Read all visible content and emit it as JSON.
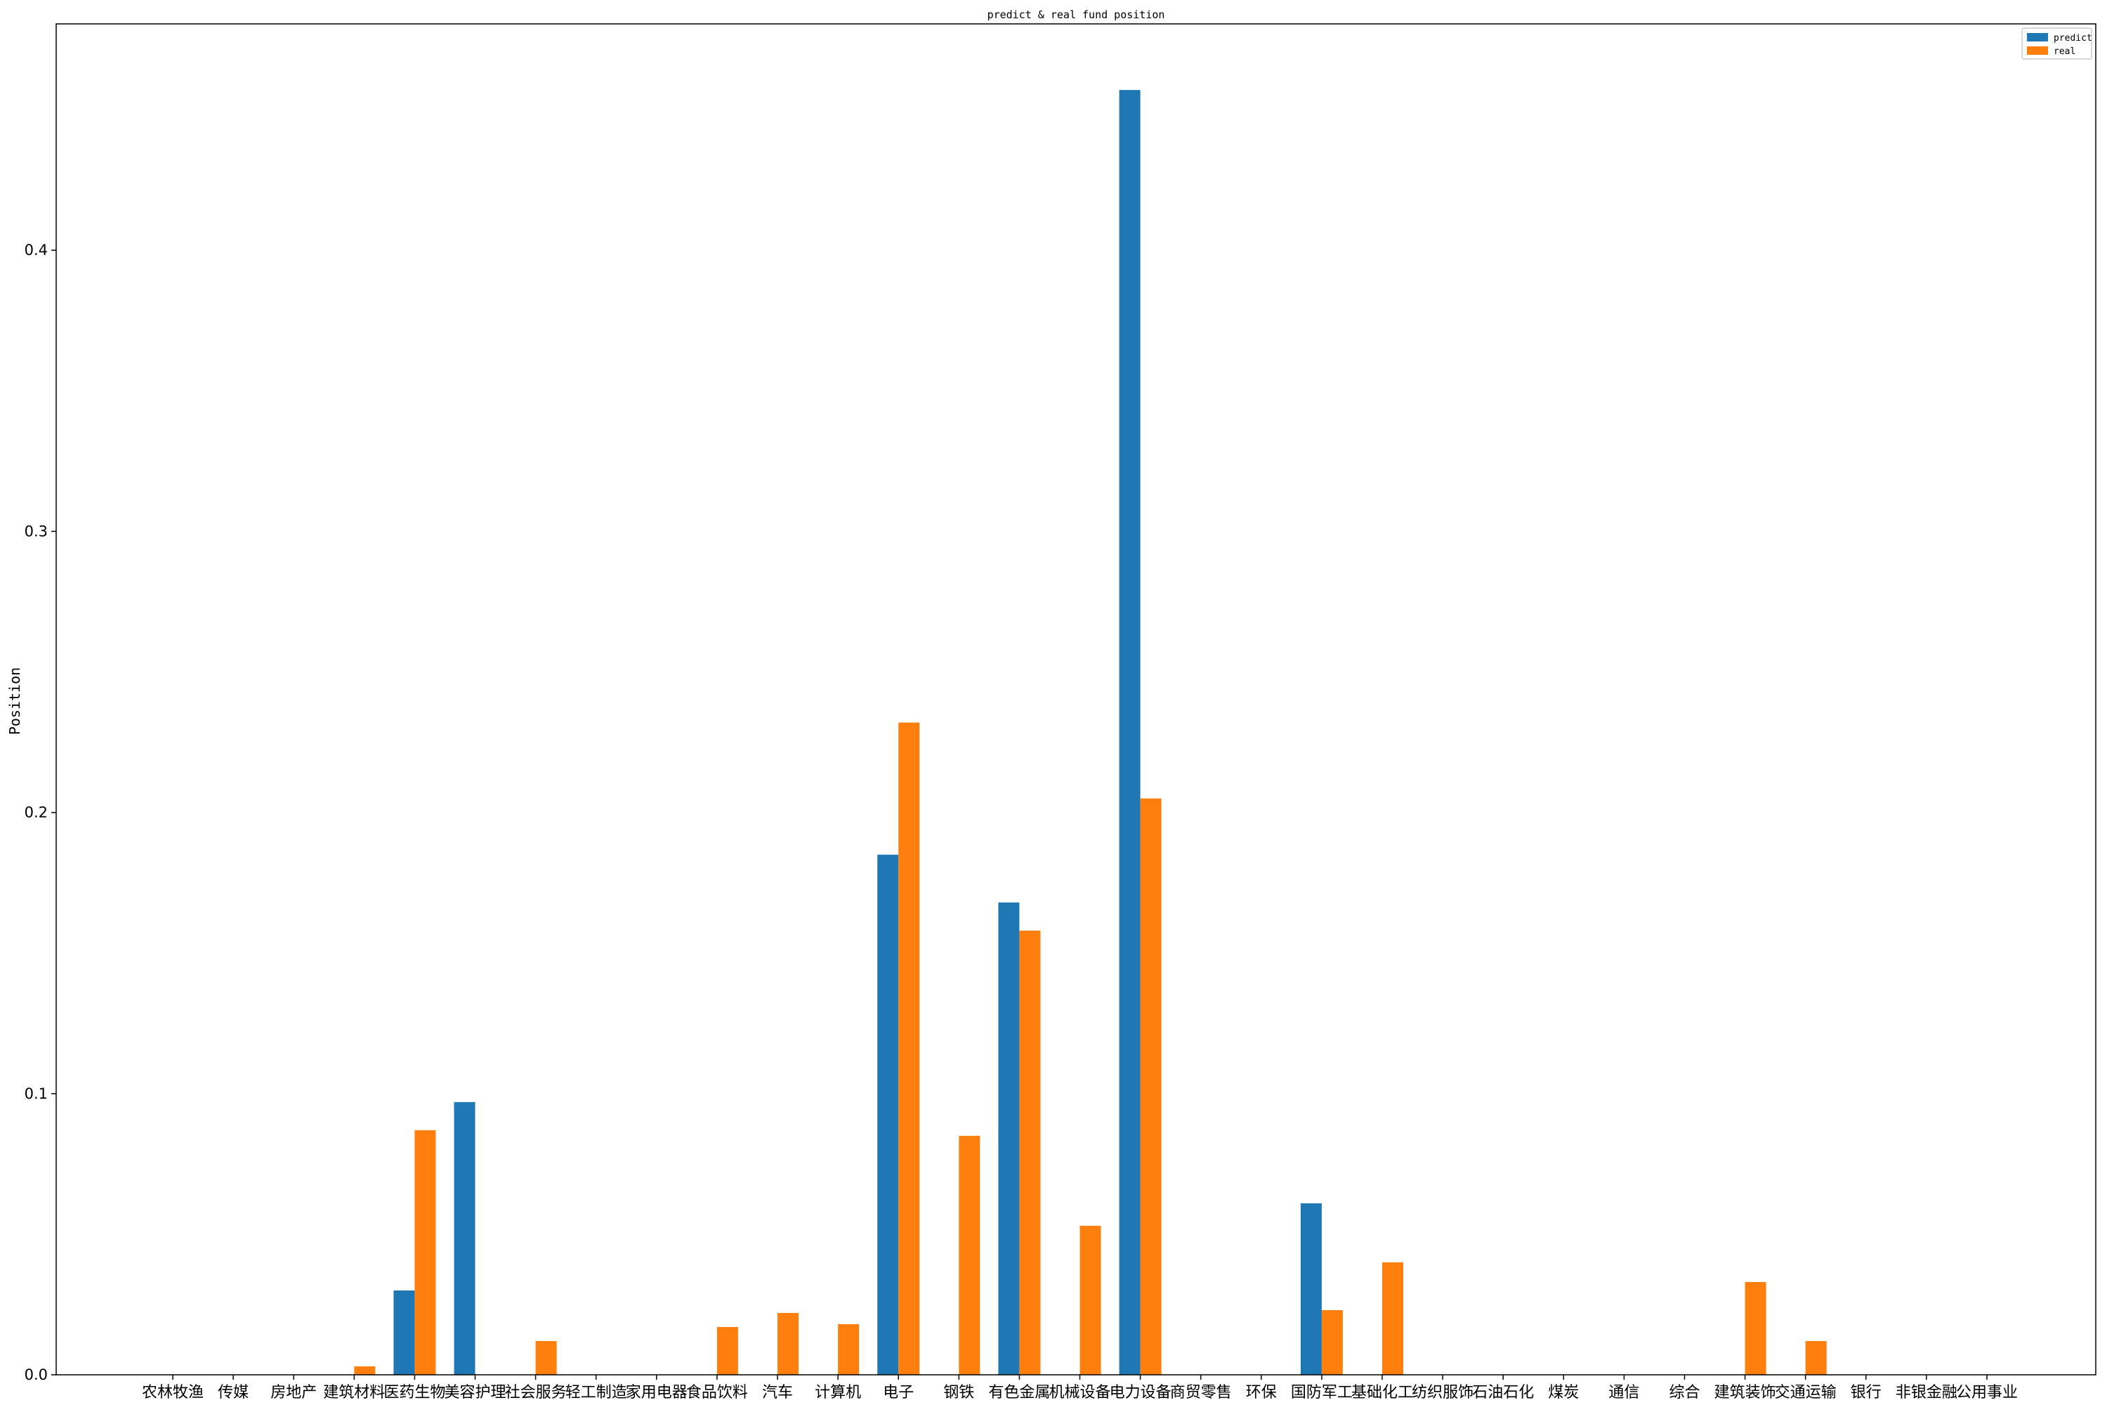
{
  "chart_data": {
    "type": "bar",
    "title": "predict & real fund position",
    "xlabel": "",
    "ylabel": "Position",
    "ylim": [
      0,
      0.48
    ],
    "yticks": [
      "0.0",
      "0.1",
      "0.2",
      "0.3",
      "0.4"
    ],
    "legend_position": "top-right",
    "grid": false,
    "categories": [
      "农林牧渔",
      "传媒",
      "房地产",
      "建筑材料",
      "医药生物",
      "美容护理",
      "社会服务",
      "轻工制造",
      "家用电器",
      "食品饮料",
      "汽车",
      "计算机",
      "电子",
      "钢铁",
      "有色金属",
      "机械设备",
      "电力设备",
      "商贸零售",
      "环保",
      "国防军工",
      "基础化工",
      "纺织服饰",
      "石油石化",
      "煤炭",
      "通信",
      "综合",
      "建筑装饰",
      "交通运输",
      "银行",
      "非银金融",
      "公用事业"
    ],
    "series": [
      {
        "name": "predict",
        "color": "#1f77b4",
        "values": [
          0,
          0,
          0,
          0,
          0.03,
          0.097,
          0,
          0,
          0,
          0,
          0,
          0,
          0.185,
          0,
          0.168,
          0,
          0.457,
          0,
          0,
          0.061,
          0,
          0,
          0,
          0,
          0,
          0,
          0,
          0,
          0,
          0,
          0
        ]
      },
      {
        "name": "real",
        "color": "#ff7f0e",
        "values": [
          0,
          0,
          0,
          0.003,
          0.087,
          0,
          0.012,
          0,
          0,
          0.017,
          0.022,
          0.018,
          0.232,
          0.085,
          0.158,
          0.053,
          0.205,
          0,
          0,
          0.023,
          0.04,
          0,
          0,
          0,
          0,
          0,
          0.033,
          0.012,
          0,
          0,
          0
        ]
      }
    ]
  }
}
